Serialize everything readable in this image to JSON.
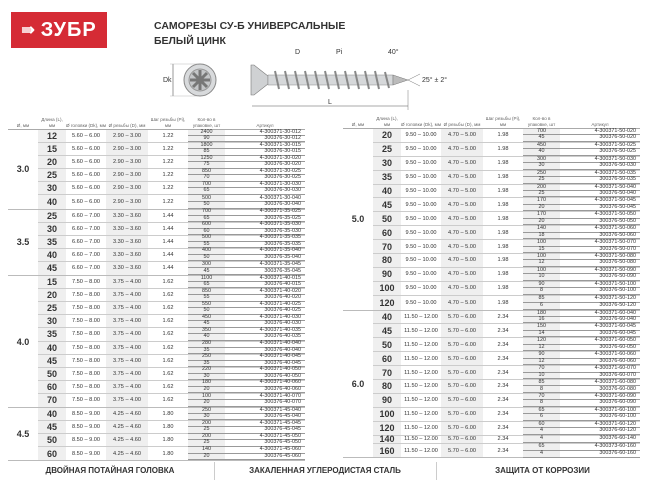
{
  "brand": {
    "name": "ЗУБР",
    "color": "#d52b35"
  },
  "title": {
    "line1": "САМОРЕЗЫ СУ-Б УНИВЕРСАЛЬНЫЕ",
    "line2": "БЕЛЫЙ ЦИНК"
  },
  "diagram": {
    "dk": "Dk",
    "d": "D",
    "pi": "Pi",
    "angle": "40°",
    "tip": "25° ± 2°",
    "l": "L"
  },
  "headers": [
    "Ø, мм",
    "Длина (L), мм",
    "Ø головки (Dk), мм",
    "Ø резьбы (D), мм",
    "Шаг резьбы (Pi), мм",
    "Кол-во в упаковке, шт",
    "Артикул"
  ],
  "left": [
    {
      "d": "3.0",
      "head": "5.60 – 6.00",
      "thread": "2.90 – 3.00",
      "pitch": "1.22",
      "rows": [
        {
          "l": "12",
          "pack": [
            [
              "2400",
              "4-300371-30-012"
            ],
            [
              "90",
              "300376-30-012"
            ]
          ]
        },
        {
          "l": "15",
          "pack": [
            [
              "1800",
              "4-300371-30-015"
            ],
            [
              "85",
              "300376-30-015"
            ]
          ]
        },
        {
          "l": "20",
          "pack": [
            [
              "1250",
              "4-300371-30-020"
            ],
            [
              "75",
              "300376-30-020"
            ]
          ]
        },
        {
          "l": "25",
          "pack": [
            [
              "850",
              "4-300371-30-025"
            ],
            [
              "70",
              "300376-30-025"
            ]
          ]
        },
        {
          "l": "30",
          "pack": [
            [
              "700",
              "4-300371-30-030"
            ],
            [
              "65",
              "300376-30-030"
            ]
          ]
        },
        {
          "l": "40",
          "pack": [
            [
              "500",
              "4-300371-30-040"
            ],
            [
              "50",
              "300376-30-040"
            ]
          ]
        }
      ]
    },
    {
      "d": "3.5",
      "head": "6.60 – 7.00",
      "thread": "3.30 – 3.60",
      "pitch": "1.44",
      "rows": [
        {
          "l": "25",
          "pack": [
            [
              "700",
              "4-300371-35-025"
            ],
            [
              "65",
              "300376-35-025"
            ]
          ]
        },
        {
          "l": "30",
          "pack": [
            [
              "600",
              "4-300371-35-030"
            ],
            [
              "60",
              "300376-35-030"
            ]
          ]
        },
        {
          "l": "35",
          "pack": [
            [
              "500",
              "4-300371-35-035"
            ],
            [
              "55",
              "300376-35-035"
            ]
          ]
        },
        {
          "l": "40",
          "pack": [
            [
              "400",
              "4-300371-35-040"
            ],
            [
              "50",
              "300376-35-040"
            ]
          ]
        },
        {
          "l": "45",
          "pack": [
            [
              "300",
              "4-300371-35-045"
            ],
            [
              "45",
              "300376-35-045"
            ]
          ]
        }
      ]
    },
    {
      "d": "4.0",
      "head": "7.50 – 8.00",
      "thread": "3.75 – 4.00",
      "pitch": "1.62",
      "rows": [
        {
          "l": "15",
          "pack": [
            [
              "1100",
              "4-300371-40-015"
            ],
            [
              "65",
              "300376-40-015"
            ]
          ]
        },
        {
          "l": "20",
          "pack": [
            [
              "850",
              "4-300371-40-020"
            ],
            [
              "55",
              "300376-40-020"
            ]
          ]
        },
        {
          "l": "25",
          "pack": [
            [
              "550",
              "4-300371-40-025"
            ],
            [
              "50",
              "300376-40-025"
            ]
          ]
        },
        {
          "l": "30",
          "pack": [
            [
              "450",
              "4-300371-40-030"
            ],
            [
              "45",
              "300376-40-030"
            ]
          ]
        },
        {
          "l": "35",
          "pack": [
            [
              "350",
              "4-300371-40-035"
            ],
            [
              "40",
              "300376-40-035"
            ]
          ]
        },
        {
          "l": "40",
          "pack": [
            [
              "280",
              "4-300371-40-040"
            ],
            [
              "35",
              "300376-40-040"
            ]
          ]
        },
        {
          "l": "45",
          "pack": [
            [
              "250",
              "4-300371-40-045"
            ],
            [
              "35",
              "300376-40-045"
            ]
          ]
        },
        {
          "l": "50",
          "pack": [
            [
              "220",
              "4-300371-40-050"
            ],
            [
              "30",
              "300376-40-050"
            ]
          ]
        },
        {
          "l": "60",
          "pack": [
            [
              "180",
              "4-300371-40-060"
            ],
            [
              "20",
              "300376-40-060"
            ]
          ]
        },
        {
          "l": "70",
          "pack": [
            [
              "100",
              "4-300371-40-070"
            ],
            [
              "20",
              "300376-40-070"
            ]
          ]
        }
      ]
    },
    {
      "d": "4.5",
      "head": "8.50 – 9.00",
      "thread": "4.25 – 4.60",
      "pitch": "1.80",
      "rows": [
        {
          "l": "40",
          "pack": [
            [
              "250",
              "4-300371-45-040"
            ],
            [
              "30",
              "300376-45-040"
            ]
          ]
        },
        {
          "l": "45",
          "pack": [
            [
              "200",
              "4-300371-45-045"
            ],
            [
              "25",
              "300376-45-045"
            ]
          ]
        },
        {
          "l": "50",
          "pack": [
            [
              "200",
              "4-300371-45-050"
            ],
            [
              "25",
              "300376-45-050"
            ]
          ]
        },
        {
          "l": "60",
          "pack": [
            [
              "140",
              "4-300371-45-060"
            ],
            [
              "20",
              "300376-45-060"
            ]
          ]
        }
      ]
    }
  ],
  "right": [
    {
      "d": "5.0",
      "head": "9.50 – 10.00",
      "thread": "4.70 – 5.00",
      "pitch": "1.98",
      "rows": [
        {
          "l": "20",
          "pack": [
            [
              "700",
              "4-300371-50-020"
            ],
            [
              "45",
              "300376-50-020"
            ]
          ]
        },
        {
          "l": "25",
          "pack": [
            [
              "450",
              "4-300371-50-025"
            ],
            [
              "40",
              "300376-50-025"
            ]
          ]
        },
        {
          "l": "30",
          "pack": [
            [
              "300",
              "4-300371-50-030"
            ],
            [
              "30",
              "300376-50-030"
            ]
          ]
        },
        {
          "l": "35",
          "pack": [
            [
              "250",
              "4-300371-50-035"
            ],
            [
              "25",
              "300376-50-035"
            ]
          ]
        },
        {
          "l": "40",
          "pack": [
            [
              "200",
              "4-300371-50-040"
            ],
            [
              "25",
              "300376-50-040"
            ]
          ]
        },
        {
          "l": "45",
          "pack": [
            [
              "170",
              "4-300371-50-045"
            ],
            [
              "20",
              "300376-50-045"
            ]
          ]
        },
        {
          "l": "50",
          "pack": [
            [
              "170",
              "4-300371-50-050"
            ],
            [
              "20",
              "300376-50-050"
            ]
          ]
        },
        {
          "l": "60",
          "pack": [
            [
              "140",
              "4-300371-50-060"
            ],
            [
              "18",
              "300376-50-060"
            ]
          ]
        },
        {
          "l": "70",
          "pack": [
            [
              "100",
              "4-300371-50-070"
            ],
            [
              "15",
              "300376-50-070"
            ]
          ]
        },
        {
          "l": "80",
          "pack": [
            [
              "100",
              "4-300371-50-080"
            ],
            [
              "12",
              "300376-50-080"
            ]
          ]
        },
        {
          "l": "90",
          "pack": [
            [
              "100",
              "4-300371-50-090"
            ],
            [
              "10",
              "300376-50-090"
            ]
          ]
        },
        {
          "l": "100",
          "pack": [
            [
              "90",
              "4-300371-50-100"
            ],
            [
              "8",
              "300376-50-100"
            ]
          ]
        },
        {
          "l": "120",
          "pack": [
            [
              "85",
              "4-300371-50-120"
            ],
            [
              "6",
              "300376-50-120"
            ]
          ]
        }
      ]
    },
    {
      "d": "6.0",
      "head": "11.50 – 12.00",
      "thread": "5.70 – 6.00",
      "pitch": "2.34",
      "rows": [
        {
          "l": "40",
          "pack": [
            [
              "180",
              "4-300371-60-040"
            ],
            [
              "16",
              "300376-60-040"
            ]
          ]
        },
        {
          "l": "45",
          "pack": [
            [
              "150",
              "4-300371-60-045"
            ],
            [
              "14",
              "300376-60-045"
            ]
          ]
        },
        {
          "l": "50",
          "pack": [
            [
              "120",
              "4-300371-60-050"
            ],
            [
              "12",
              "300376-60-050"
            ]
          ]
        },
        {
          "l": "60",
          "pack": [
            [
              "90",
              "4-300371-60-060"
            ],
            [
              "12",
              "300376-60-060"
            ]
          ]
        },
        {
          "l": "70",
          "pack": [
            [
              "70",
              "4-300371-60-070"
            ],
            [
              "10",
              "300376-60-070"
            ]
          ]
        },
        {
          "l": "80",
          "pack": [
            [
              "85",
              "4-300371-60-080"
            ],
            [
              "8",
              "300376-60-080"
            ]
          ]
        },
        {
          "l": "90",
          "pack": [
            [
              "70",
              "4-300371-60-090"
            ],
            [
              "8",
              "300376-60-090"
            ]
          ]
        },
        {
          "l": "100",
          "pack": [
            [
              "65",
              "4-300371-60-100"
            ],
            [
              "6",
              "300376-60-100"
            ]
          ]
        },
        {
          "l": "120",
          "pack": [
            [
              "60",
              "4-300371-60-120"
            ],
            [
              "4",
              "300376-60-120"
            ]
          ]
        },
        {
          "l": "140",
          "pack": [
            [
              "4",
              "300376-60-140"
            ]
          ]
        },
        {
          "l": "160",
          "pack": [
            [
              "65",
              "4-300373-60-160"
            ],
            [
              "4",
              "300376-60-160"
            ]
          ]
        }
      ]
    }
  ],
  "footer": [
    "ДВОЙНАЯ ПОТАЙНАЯ ГОЛОВКА",
    "ЗАКАЛЕННАЯ УГЛЕРОДИСТАЯ СТАЛЬ",
    "ЗАЩИТА ОТ КОРРОЗИИ"
  ]
}
